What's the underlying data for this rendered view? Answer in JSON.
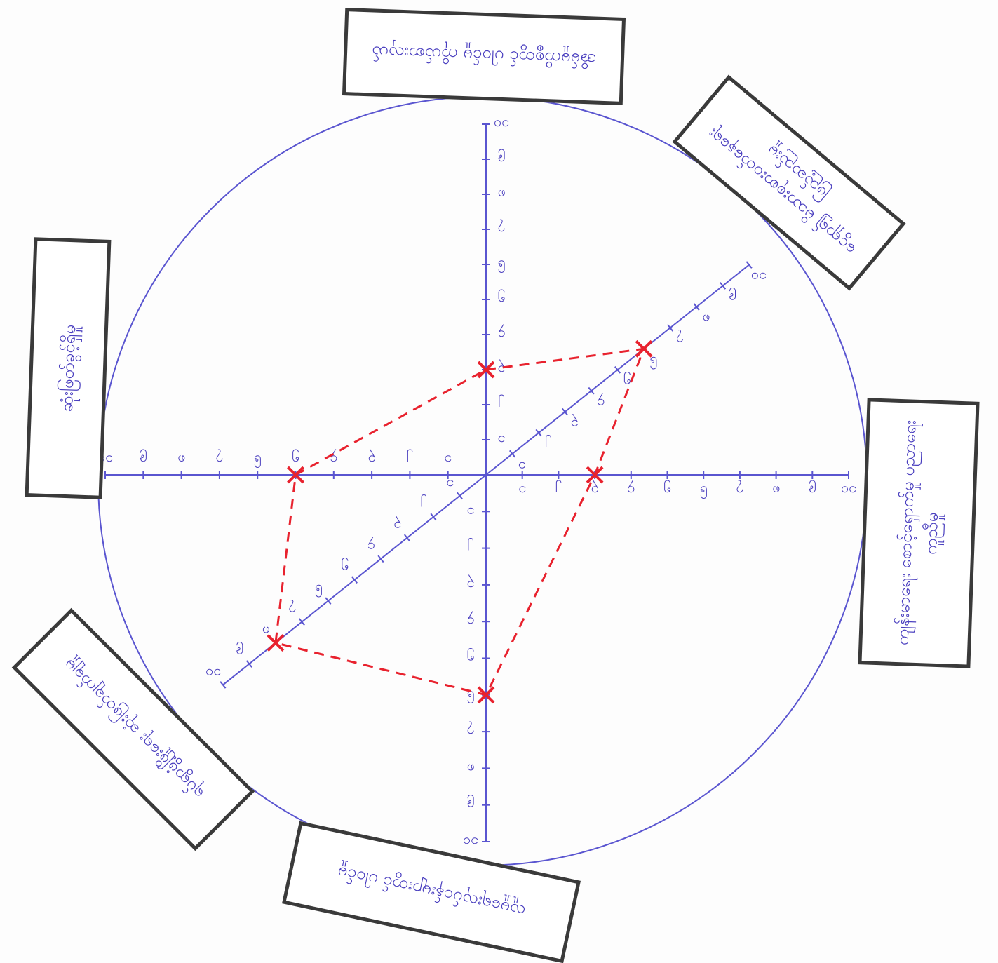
{
  "chart_data": {
    "type": "radar",
    "categories": [
      "အိမ်မှုကိစ္စတွင် ပါဝင်မှု ကိုယ်စားလှယ်",
      "ငွေရှာ၍ မိသားစုစားဝတ်နေရေး ဖြည့်ဆည်းမှု",
      "ကျန်းမာရေး စောင့်ရှောက်မှု ပညာရေး ကူညီမှု",
      "လူမှုရေးလုပ်ငန်းများတွင် ပါဝင်မှု",
      "ရပ်ရွာဖွံ့ဖြိုးရေး ဆုံးဖြတ်ချက်ချမှု",
      "ဆုံးဖြတ်ခွင့်ရှိမှု"
    ],
    "values": [
      3,
      6,
      3,
      6,
      8,
      5
    ],
    "color": "#e8222e",
    "rlim": [
      0,
      10
    ],
    "rticks": [
      {
        "value": 1,
        "label": "၁"
      },
      {
        "value": 2,
        "label": "၂"
      },
      {
        "value": 3,
        "label": "၃"
      },
      {
        "value": 4,
        "label": "၄"
      },
      {
        "value": 5,
        "label": "၅"
      },
      {
        "value": 6,
        "label": "၆"
      },
      {
        "value": 7,
        "label": "၇"
      },
      {
        "value": 8,
        "label": "၈"
      },
      {
        "value": 9,
        "label": "၉"
      },
      {
        "value": 10,
        "label": "၁၀"
      }
    ]
  }
}
